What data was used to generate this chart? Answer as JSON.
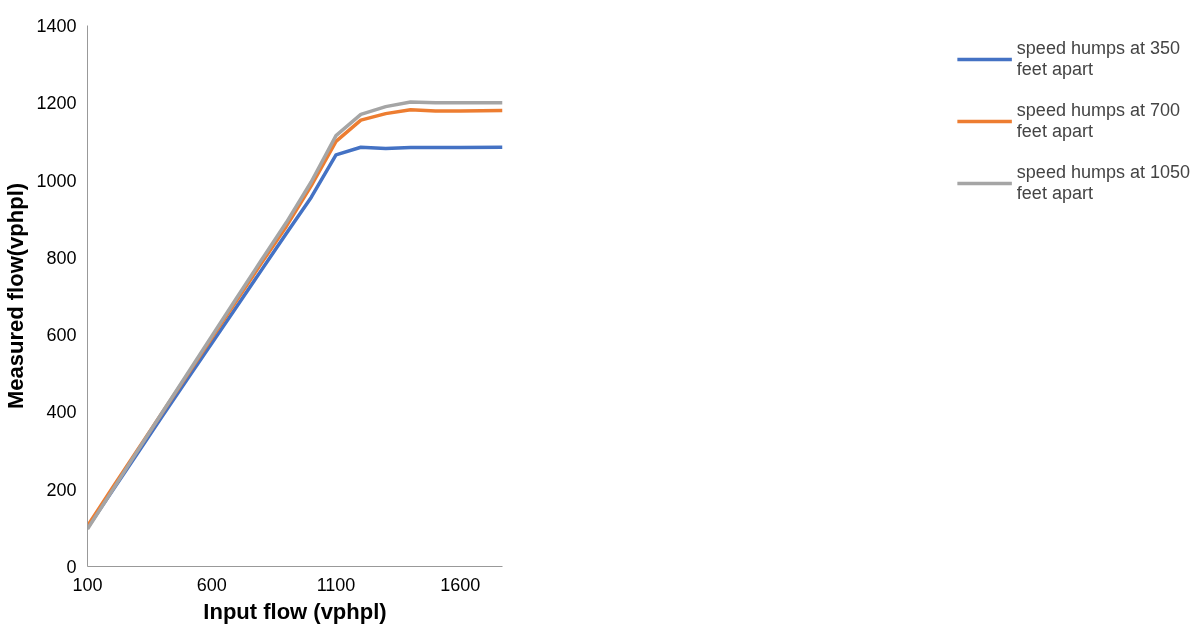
{
  "chart_data": {
    "type": "line",
    "xlabel": "Input flow (vphpl)",
    "ylabel": "Measured flow(vphpl)",
    "x": [
      100,
      200,
      300,
      400,
      500,
      600,
      700,
      800,
      900,
      1000,
      1100,
      1200,
      1300,
      1400,
      1500,
      1600,
      1770
    ],
    "series": [
      {
        "name": "speed humps at 350 feet apart",
        "color": "#4472c4",
        "values": [
          100,
          196,
          292,
          388,
          483,
          578,
          672,
          767,
          862,
          955,
          1065,
          1085,
          1082,
          1084,
          1084,
          1084,
          1085
        ]
      },
      {
        "name": "speed humps at 700 feet apart",
        "color": "#ed7d31",
        "values": [
          105,
          203,
          300,
          397,
          494,
          591,
          688,
          785,
          880,
          985,
          1100,
          1155,
          1172,
          1182,
          1179,
          1179,
          1180
        ]
      },
      {
        "name": "speed humps at 1050 feet apart",
        "color": "#a5a5a5",
        "values": [
          97,
          197,
          298,
          398,
          497,
          596,
          695,
          793,
          890,
          995,
          1115,
          1170,
          1190,
          1202,
          1200,
          1200,
          1200
        ]
      }
    ],
    "xlim": [
      100,
      1770
    ],
    "ylim": [
      0,
      1400
    ],
    "xticks": [
      100,
      600,
      1100,
      1600
    ],
    "yticks": [
      0,
      200,
      400,
      600,
      800,
      1000,
      1200,
      1400
    ],
    "grid": false,
    "legend": "right",
    "marker": "none",
    "line_style": "solid"
  }
}
